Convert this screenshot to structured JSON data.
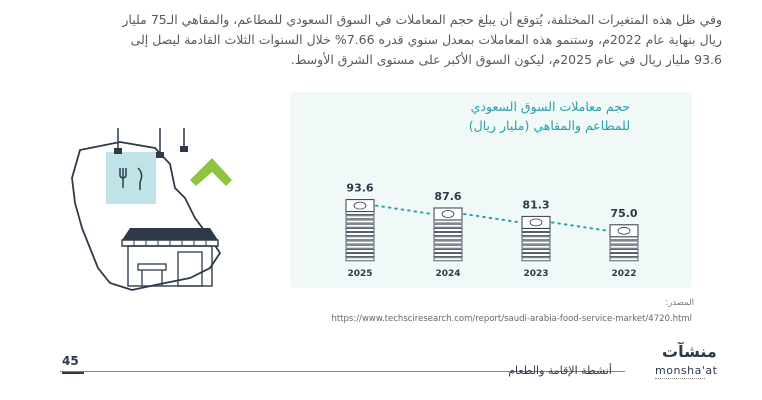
{
  "paragraph": {
    "line1": "وفي ظل هذه المتغيرات المختلفة، يُتوقع أن يبلغ حجم المعاملات في السوق السعودي للمطاعم، والمقاهي الـ75 مليار",
    "line2": "ريال بنهاية عام 2022م، وستنمو هذه المعاملات بمعدل سنوي قدره 7.66% خلال السنوات الثلاث القادمة ليصل إلى",
    "line3": "93.6 مليار ريال في عام 2025م، ليكون السوق الأكبر على مستوى الشرق الأوسط."
  },
  "chart_data": {
    "type": "line",
    "title_line1": "حجم معاملات السوق السعودي",
    "title_line2": "للمطاعم والمقاهي (مليار ريال)",
    "categories": [
      "2025",
      "2024",
      "2023",
      "2022"
    ],
    "values": [
      93.6,
      87.6,
      81.3,
      75.0
    ],
    "value_labels": [
      "93.6",
      "87.6",
      "81.3",
      "75.0"
    ],
    "stack_counts": [
      12,
      10,
      8,
      6
    ],
    "color": "#2a9fa8"
  },
  "source": {
    "label": "المصدر:",
    "url": "https://www.techsciresearch.com/report/saudi-arabia-food-service-market/4720.html"
  },
  "footer": {
    "page_number": "45",
    "title": "أنشطة الإقامة والطعام",
    "logo_ar": "منشآت",
    "logo_en": "monsha'at"
  }
}
